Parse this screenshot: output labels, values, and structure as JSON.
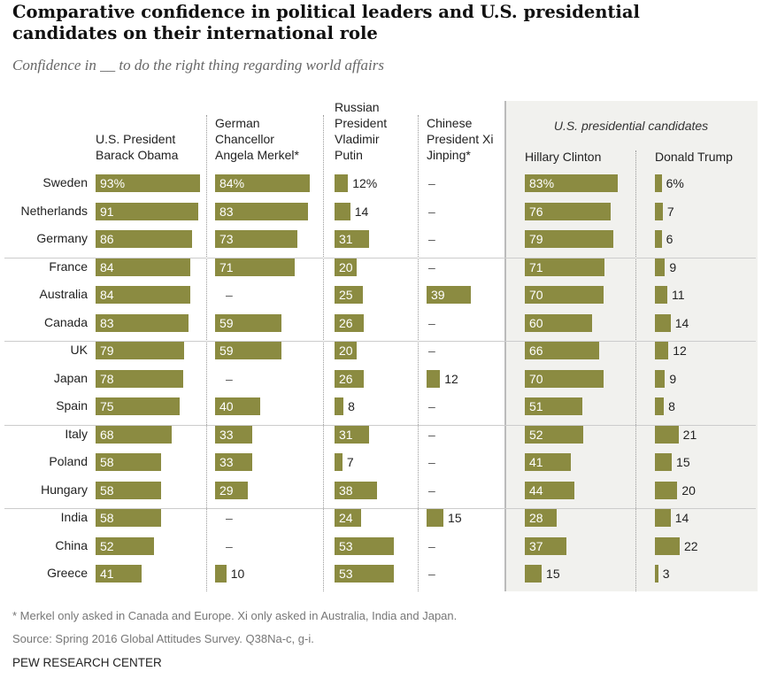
{
  "chart_data": {
    "type": "bar",
    "title": "Comparative confidence in political leaders and U.S. presidential\ncandidates on their international role",
    "subtitle": "Confidence in __ to do the right thing regarding world affairs",
    "group_label": "U.S. presidential candidates",
    "categories": [
      "Sweden",
      "Netherlands",
      "Germany",
      "France",
      "Australia",
      "Canada",
      "UK",
      "Japan",
      "Spain",
      "Italy",
      "Poland",
      "Hungary",
      "India",
      "China",
      "Greece"
    ],
    "series": [
      {
        "name": "U.S. President\nBarack Obama",
        "values": [
          93,
          91,
          86,
          84,
          84,
          83,
          79,
          78,
          75,
          68,
          58,
          58,
          58,
          52,
          41
        ]
      },
      {
        "name": "German\nChancellor\nAngela Merkel*",
        "values": [
          84,
          83,
          73,
          71,
          null,
          59,
          59,
          null,
          40,
          33,
          33,
          29,
          null,
          null,
          10
        ]
      },
      {
        "name": "Russian\nPresident\nVladimir\nPutin",
        "values": [
          12,
          14,
          31,
          20,
          25,
          26,
          20,
          26,
          8,
          31,
          7,
          38,
          24,
          53,
          53
        ]
      },
      {
        "name": "Chinese\nPresident Xi\nJinping*",
        "values": [
          null,
          null,
          null,
          null,
          39,
          null,
          null,
          12,
          null,
          null,
          null,
          null,
          15,
          null,
          null
        ]
      },
      {
        "name": "Hillary Clinton",
        "values": [
          83,
          76,
          79,
          71,
          70,
          60,
          66,
          70,
          51,
          52,
          41,
          44,
          28,
          37,
          15
        ]
      },
      {
        "name": "Donald Trump",
        "values": [
          6,
          7,
          6,
          9,
          11,
          14,
          12,
          9,
          8,
          21,
          15,
          20,
          14,
          22,
          3
        ]
      }
    ],
    "missing_label": "–",
    "unit": "%",
    "bar_color": "#8b8b41",
    "xlim": [
      0,
      100
    ]
  },
  "footnote": "* Merkel only asked in Canada and Europe. Xi only asked in Australia, India and Japan.",
  "source": "Source: Spring 2016 Global Attitudes Survey. Q38Na-c, g-i.",
  "brand": "PEW RESEARCH CENTER"
}
